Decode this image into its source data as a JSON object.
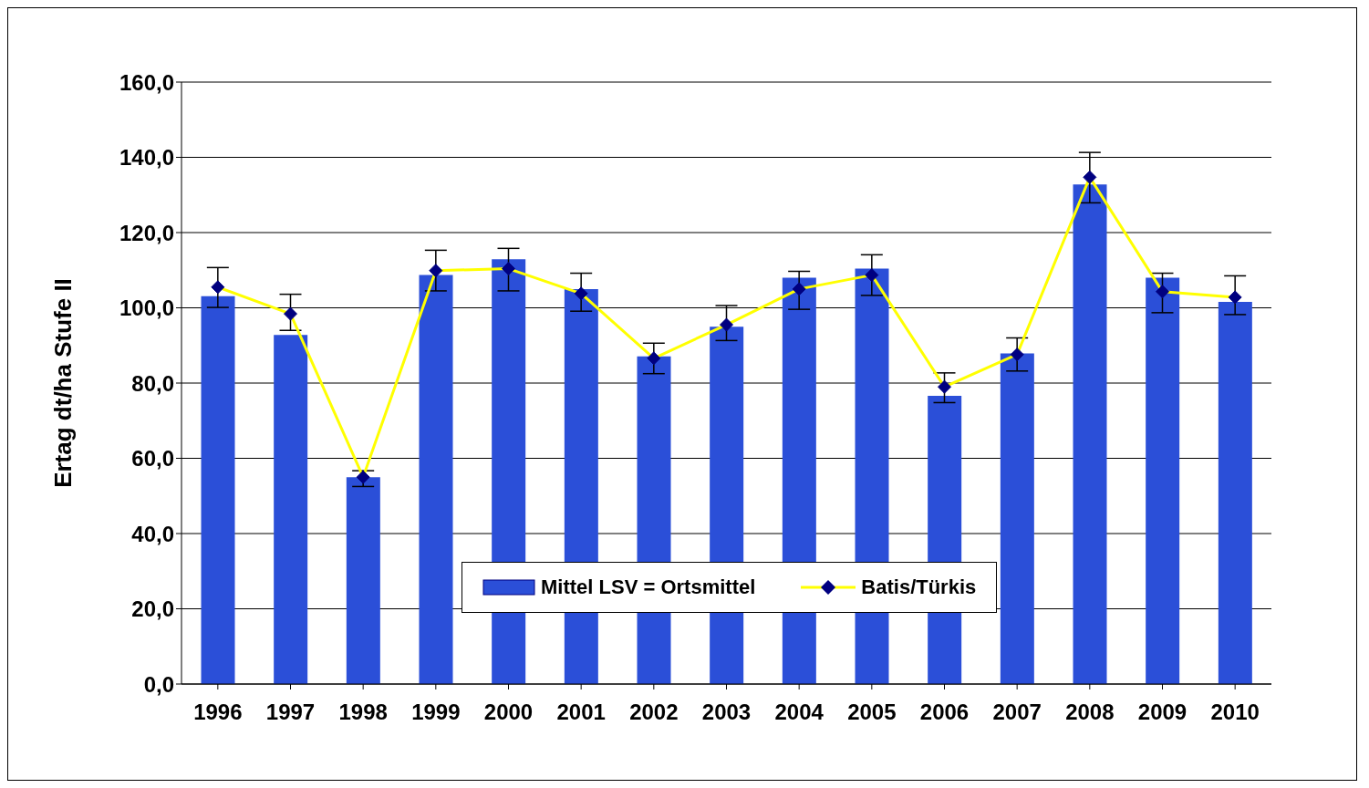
{
  "chart_data": {
    "type": "bar",
    "ylabel": "Ertag dt/ha Stufe II",
    "categories": [
      "1996",
      "1997",
      "1998",
      "1999",
      "2000",
      "2001",
      "2002",
      "2003",
      "2004",
      "2005",
      "2006",
      "2007",
      "2008",
      "2009",
      "2010"
    ],
    "series": [
      {
        "name": "Mittel LSV = Ortsmittel",
        "color": "#2b4fd8",
        "values": [
          103.1,
          92.8,
          55.0,
          108.7,
          112.9,
          105.0,
          87.1,
          95.0,
          108.0,
          110.4,
          76.6,
          87.9,
          132.8,
          108.0,
          101.6
        ]
      },
      {
        "name": "Batis/Türkis",
        "type": "line",
        "color": "#ffff00",
        "marker": "diamond",
        "values": [
          105.5,
          98.4,
          55.0,
          109.9,
          110.4,
          103.8,
          86.6,
          95.5,
          105.0,
          108.7,
          79.0,
          87.6,
          134.7,
          104.3,
          102.8
        ],
        "errors": [
          [
            100.1,
            110.7
          ],
          [
            94.0,
            103.6
          ],
          [
            52.5,
            56.7
          ],
          [
            104.5,
            115.3
          ],
          [
            104.5,
            115.8
          ],
          [
            99.1,
            109.2
          ],
          [
            82.5,
            90.6
          ],
          [
            91.3,
            100.6
          ],
          [
            99.6,
            109.7
          ],
          [
            103.3,
            114.1
          ],
          [
            74.8,
            82.7
          ],
          [
            83.2,
            92.0
          ],
          [
            127.9,
            141.3
          ],
          [
            98.7,
            109.2
          ],
          [
            98.2,
            108.5
          ]
        ]
      }
    ],
    "ylim": [
      0,
      160
    ],
    "yticks": [
      {
        "value": 0,
        "label": "0,0"
      },
      {
        "value": 20,
        "label": "20,0"
      },
      {
        "value": 40,
        "label": "40,0"
      },
      {
        "value": 60,
        "label": "60,0"
      },
      {
        "value": 80,
        "label": "80,0"
      },
      {
        "value": 100,
        "label": "100,0"
      },
      {
        "value": 120,
        "label": "120,0"
      },
      {
        "value": 140,
        "label": "140,0"
      },
      {
        "value": 160,
        "label": "160,0"
      }
    ],
    "grid": "y",
    "legend": "bottom"
  }
}
